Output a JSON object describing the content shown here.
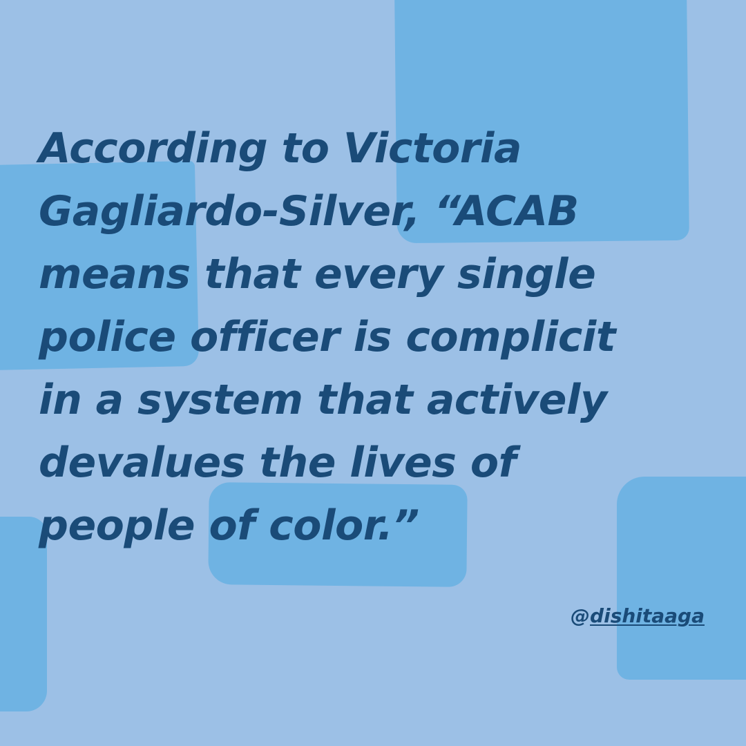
{
  "quote": {
    "lines": [
      "According to Victoria",
      "Gagliardo-Silver, “ACAB",
      "means that every single",
      "police officer is complicit",
      "in a system that actively",
      "devalues the lives of",
      "people of color.”"
    ]
  },
  "credit": {
    "at": "@",
    "username": "dishitaaga"
  },
  "colors": {
    "background": "#9cc0e6",
    "blob": "#6fb3e3",
    "text": "#1a4b78"
  }
}
